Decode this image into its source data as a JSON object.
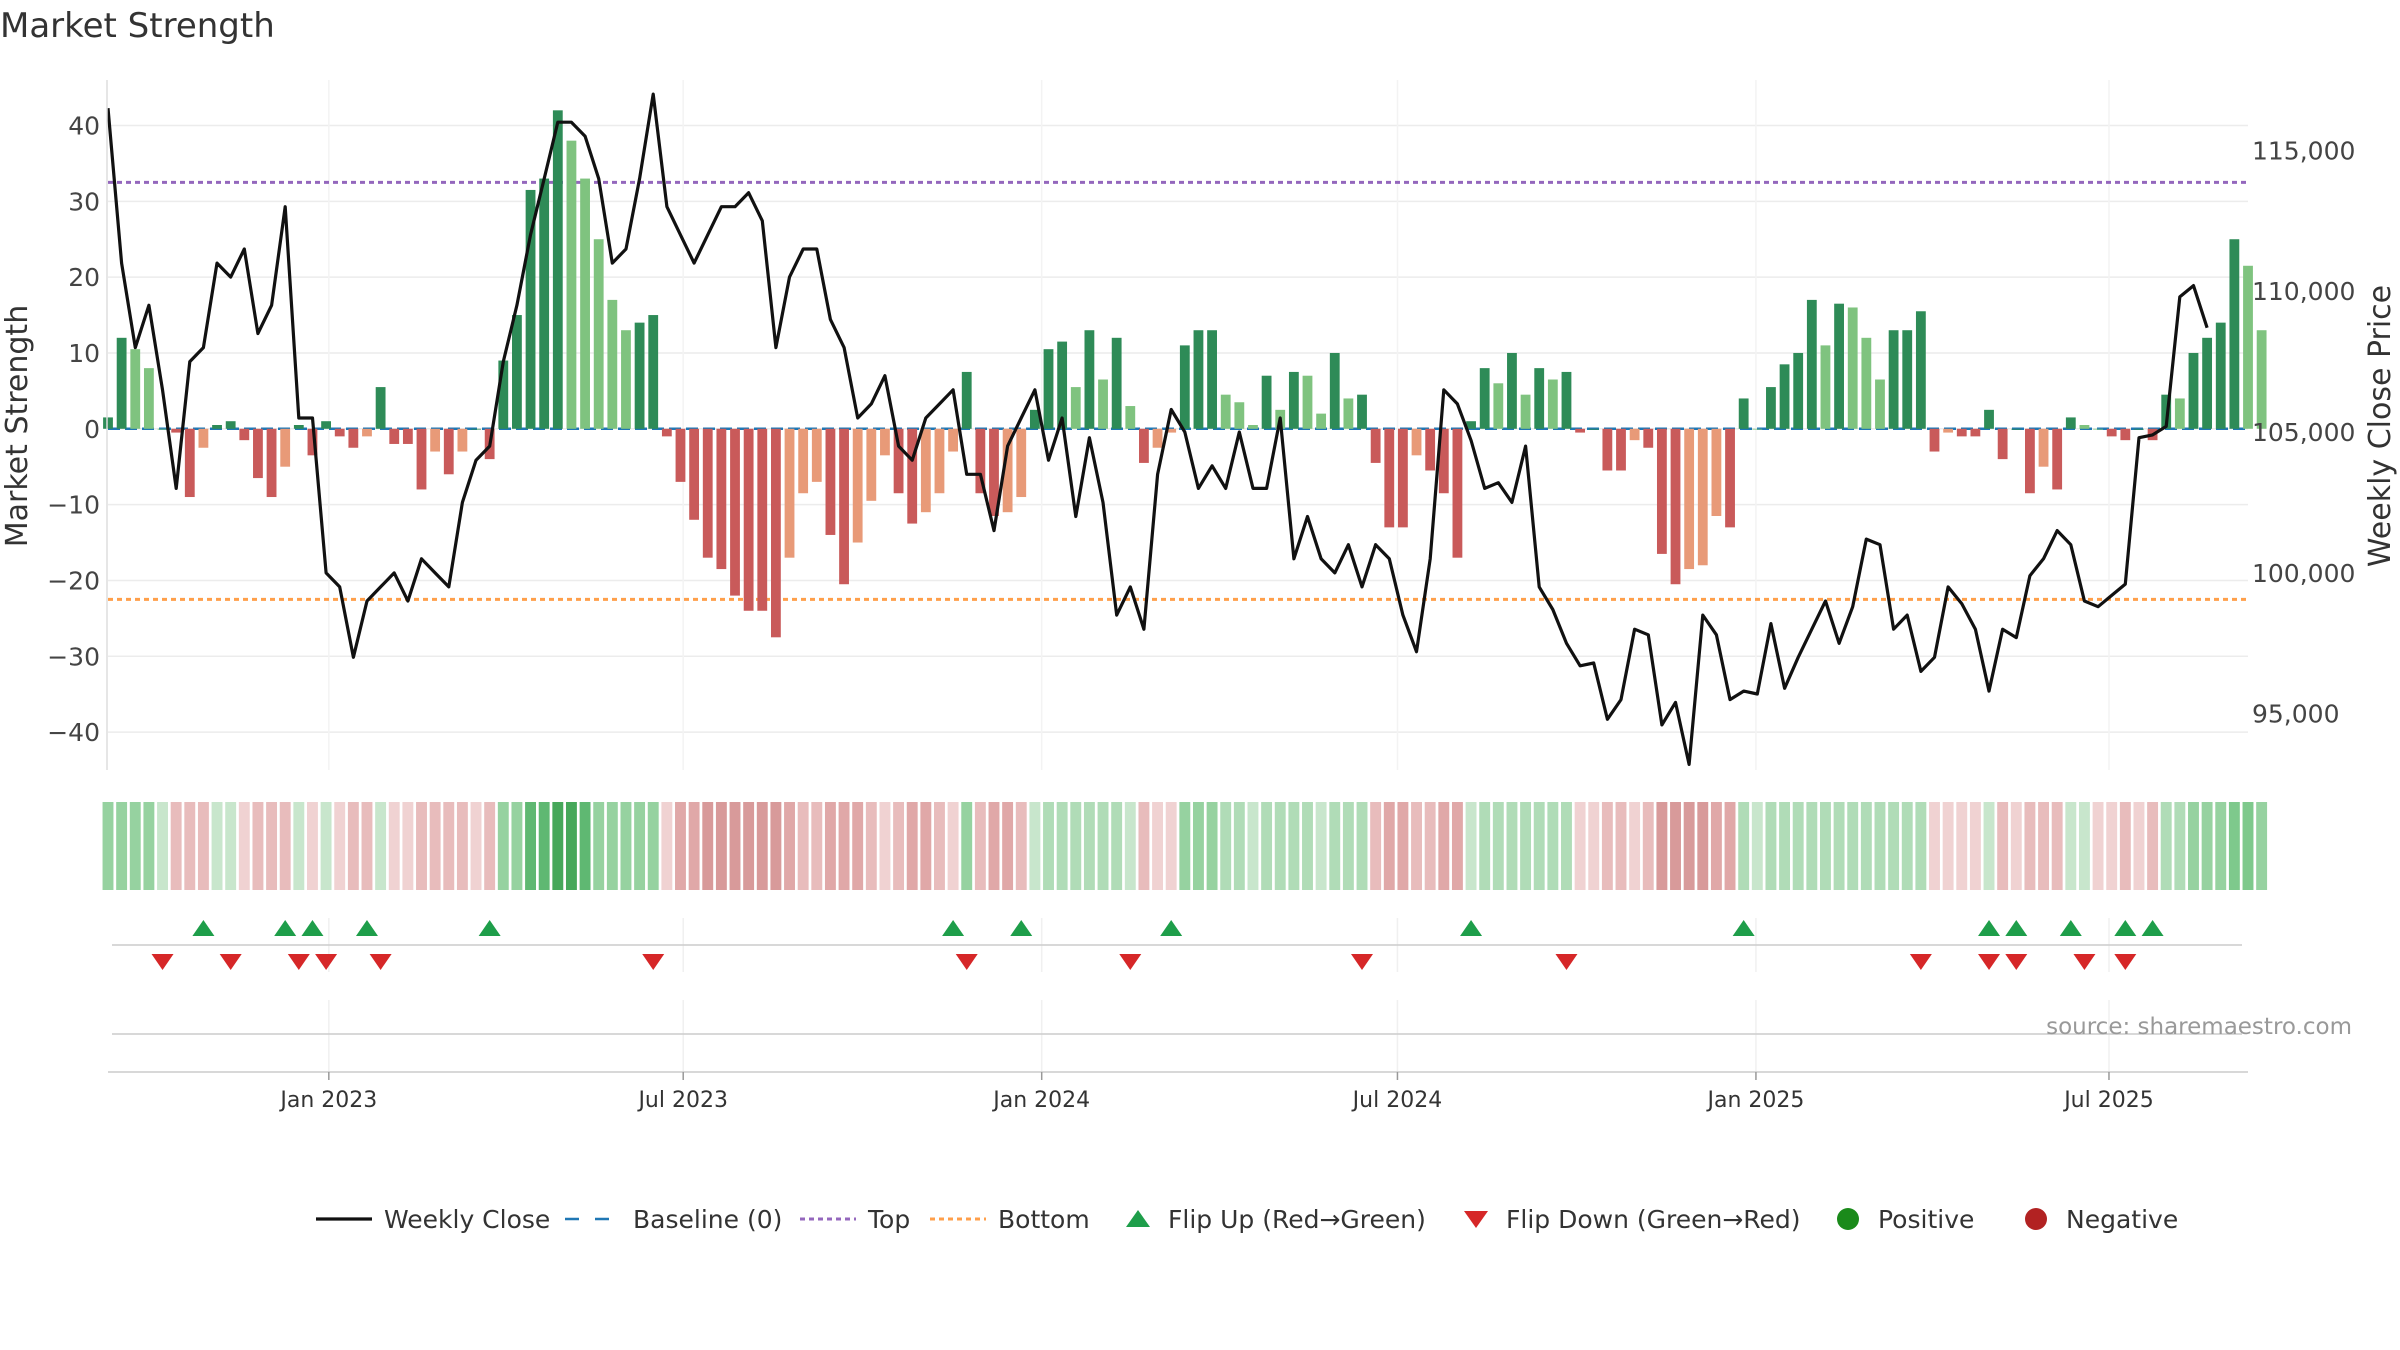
{
  "chart_data": {
    "type": "bar+line",
    "title": "Market Strength",
    "ylabel_left": "Market Strength",
    "ylabel_right": "Weekly Close Price",
    "ylim_left": [
      -45,
      46
    ],
    "yticks_left": [
      -40,
      -30,
      -20,
      -10,
      0,
      10,
      20,
      30,
      40
    ],
    "yticks_left_labels": [
      "−40",
      "−30",
      "−20",
      "−10",
      "0",
      "10",
      "20",
      "30",
      "40"
    ],
    "ylim_right": [
      93000,
      117500
    ],
    "yticks_right": [
      95000,
      100000,
      105000,
      110000,
      115000
    ],
    "yticks_right_labels": [
      "95,000",
      "100,000",
      "105,000",
      "110,000",
      "115,000"
    ],
    "top_threshold": 32.5,
    "bottom_threshold": -22.5,
    "baseline": 0,
    "x_range_weeks": [
      0,
      157
    ],
    "xticks": [
      {
        "week": 16.2,
        "label": "Jan 2023"
      },
      {
        "week": 42.2,
        "label": "Jul 2023"
      },
      {
        "week": 68.5,
        "label": "Jan 2024"
      },
      {
        "week": 94.6,
        "label": "Jul 2024"
      },
      {
        "week": 120.9,
        "label": "Jan 2025"
      },
      {
        "week": 146.8,
        "label": "Jul 2025"
      }
    ],
    "strength": [
      1.5,
      12,
      10.5,
      8,
      0,
      -0.5,
      -9,
      -2.5,
      0.5,
      1,
      -1.5,
      -6.5,
      -9,
      -5,
      0.5,
      -3.5,
      1,
      -1,
      -2.5,
      -1,
      5.5,
      -2,
      -2,
      -8,
      -3,
      -6,
      -3,
      0,
      -4,
      9,
      15,
      31.5,
      33,
      42,
      38,
      33,
      25,
      17,
      13,
      14,
      15,
      -1,
      -7,
      -12,
      -17,
      -18.5,
      -22,
      -24,
      -24,
      -27.5,
      -17,
      -8.5,
      -7,
      -14,
      -20.5,
      -15,
      -9.5,
      -3.5,
      -8.5,
      -12.5,
      -11,
      -8.5,
      -3,
      7.5,
      -8.5,
      -11.5,
      -11,
      -9,
      2.5,
      10.5,
      11.5,
      5.5,
      13,
      6.5,
      12,
      3,
      -4.5,
      -2.5,
      -0.5,
      11,
      13,
      13,
      4.5,
      3.5,
      0.5,
      7,
      2.5,
      7.5,
      7,
      2,
      10,
      4,
      4.5,
      -4.5,
      -13,
      -13,
      -3.5,
      -5.5,
      -8.5,
      -17,
      1,
      8,
      6,
      10,
      4.5,
      8,
      6.5,
      7.5,
      -0.5,
      0,
      -5.5,
      -5.5,
      -1.5,
      -2.5,
      -16.5,
      -20.5,
      -18.5,
      -18,
      -11.5,
      -13,
      4,
      0,
      5.5,
      8.5,
      10,
      17,
      11,
      16.5,
      16,
      12,
      6.5,
      13,
      13,
      15.5,
      -3,
      -0.5,
      -1,
      -1,
      2.5,
      -4,
      0,
      -8.5,
      -5,
      -8,
      1.5,
      0.5,
      0,
      -1,
      -1.5,
      0,
      -1.5,
      4.5,
      4,
      10,
      12,
      14,
      25,
      21.5,
      13
    ],
    "close": [
      116500,
      111000,
      108000,
      109500,
      106500,
      103000,
      107500,
      108000,
      111000,
      110500,
      111500,
      108500,
      109500,
      113000,
      105500,
      105500,
      100000,
      99500,
      97000,
      99000,
      99500,
      100000,
      99000,
      100500,
      100000,
      99500,
      102500,
      104000,
      104500,
      107500,
      109500,
      112000,
      114000,
      116000,
      116000,
      115500,
      114000,
      111000,
      111500,
      114000,
      117000,
      113000,
      112000,
      111000,
      112000,
      113000,
      113000,
      113500,
      112500,
      108000,
      110500,
      111500,
      111500,
      109000,
      108000,
      105500,
      106000,
      107000,
      104500,
      104000,
      105500,
      106000,
      106500,
      103500,
      103500,
      101500,
      104500,
      105500,
      106500,
      104000,
      105500,
      102000,
      104800,
      102500,
      98500,
      99500,
      98000,
      103500,
      105800,
      105000,
      103000,
      103800,
      103000,
      105000,
      103000,
      103000,
      105500,
      100500,
      102000,
      100500,
      100000,
      101000,
      99500,
      101000,
      100500,
      98500,
      97200,
      100500,
      106500,
      106000,
      104700,
      103000,
      103200,
      102500,
      104500,
      99500,
      98700,
      97500,
      96700,
      96800,
      94800,
      95500,
      98000,
      97800,
      94600,
      95400,
      93200,
      98500,
      97800,
      95500,
      95800,
      95700,
      98200,
      95900,
      97000,
      98000,
      99000,
      97500,
      98800,
      101200,
      101000,
      98000,
      98500,
      96500,
      97000,
      99500,
      98900,
      98000,
      95800,
      98000,
      97700,
      99900,
      100500,
      101500,
      101000,
      99000,
      98800,
      99200,
      99600,
      104800,
      104900,
      105200,
      109800,
      110200,
      108700
    ],
    "band_colors": [
      "#96d2a0",
      "#96d2a0",
      "#96d2a0",
      "#96d2a0",
      "#c8e6cc",
      "#e8bcbc",
      "#e8bcbc",
      "#e8bcbc",
      "#c8e6cc",
      "#c8e6cc",
      "#f0d2d2",
      "#e8bcbc",
      "#e8bcbc",
      "#e8bcbc",
      "#c8e6cc",
      "#f0d2d2",
      "#c8e6cc",
      "#f0d2d2",
      "#e8bcbc",
      "#e8bcbc",
      "#c8e6cc",
      "#f0d2d2",
      "#f0d2d2",
      "#e8bcbc",
      "#e8bcbc",
      "#e8bcbc",
      "#e8bcbc",
      "#f0d2d2",
      "#e8bcbc",
      "#96d2a0",
      "#96d2a0",
      "#5fb872",
      "#5fb872",
      "#46a85a",
      "#46a85a",
      "#5fb872",
      "#96d2a0",
      "#96d2a0",
      "#96d2a0",
      "#96d2a0",
      "#96d2a0",
      "#f0d2d2",
      "#e0a8a8",
      "#e0a8a8",
      "#d89a9a",
      "#d89a9a",
      "#d89a9a",
      "#d89a9a",
      "#d89a9a",
      "#d89a9a",
      "#e0a8a8",
      "#e8bcbc",
      "#e8bcbc",
      "#e0a8a8",
      "#e0a8a8",
      "#e0a8a8",
      "#e8bcbc",
      "#f0d2d2",
      "#e8bcbc",
      "#e0a8a8",
      "#e0a8a8",
      "#e8bcbc",
      "#f0d2d2",
      "#96d2a0",
      "#e8bcbc",
      "#e0a8a8",
      "#e0a8a8",
      "#e8bcbc",
      "#c8e6cc",
      "#b0dcb7",
      "#b0dcb7",
      "#b0dcb7",
      "#b0dcb7",
      "#b0dcb7",
      "#b0dcb7",
      "#c8e6cc",
      "#e8bcbc",
      "#f0d2d2",
      "#f0d2d2",
      "#96d2a0",
      "#96d2a0",
      "#96d2a0",
      "#b0dcb7",
      "#b0dcb7",
      "#c8e6cc",
      "#b0dcb7",
      "#b0dcb7",
      "#b0dcb7",
      "#b0dcb7",
      "#c8e6cc",
      "#b0dcb7",
      "#b0dcb7",
      "#b0dcb7",
      "#e8bcbc",
      "#e0a8a8",
      "#e0a8a8",
      "#e8bcbc",
      "#e8bcbc",
      "#e0a8a8",
      "#e0a8a8",
      "#c8e6cc",
      "#b0dcb7",
      "#b0dcb7",
      "#b0dcb7",
      "#b0dcb7",
      "#b0dcb7",
      "#b0dcb7",
      "#b0dcb7",
      "#f0d2d2",
      "#f0d2d2",
      "#e8bcbc",
      "#e8bcbc",
      "#f0d2d2",
      "#e8bcbc",
      "#d89a9a",
      "#d89a9a",
      "#d89a9a",
      "#d89a9a",
      "#e0a8a8",
      "#e0a8a8",
      "#b0dcb7",
      "#c8e6cc",
      "#b0dcb7",
      "#b0dcb7",
      "#b0dcb7",
      "#b0dcb7",
      "#b0dcb7",
      "#b0dcb7",
      "#b0dcb7",
      "#b0dcb7",
      "#b0dcb7",
      "#b0dcb7",
      "#b0dcb7",
      "#b0dcb7",
      "#f0d2d2",
      "#f0d2d2",
      "#f0d2d2",
      "#f0d2d2",
      "#c8e6cc",
      "#e8bcbc",
      "#f0d2d2",
      "#e8bcbc",
      "#e8bcbc",
      "#e8bcbc",
      "#c8e6cc",
      "#c8e6cc",
      "#f0d2d2",
      "#f0d2d2",
      "#e8bcbc",
      "#f0d2d2",
      "#e8bcbc",
      "#b0dcb7",
      "#b0dcb7",
      "#96d2a0",
      "#96d2a0",
      "#96d2a0",
      "#7ec98c",
      "#7ec98c",
      "#96d2a0"
    ],
    "flip_up_weeks": [
      7,
      13,
      15,
      19,
      28,
      62,
      67,
      78,
      100,
      120,
      138,
      140,
      144,
      148,
      150
    ],
    "flip_down_weeks": [
      4,
      9,
      14,
      16,
      20,
      40,
      63,
      75,
      92,
      107,
      133,
      138,
      140,
      145,
      148
    ],
    "colors": {
      "pos_strong": "#2e8b57",
      "pos_weak": "#7fc37f",
      "neg_strong": "#c95a5a",
      "neg_weak": "#e89a78",
      "line": "#111111",
      "baseline": "#1f77b4",
      "top": "#9467bd",
      "bottom": "#ff9f4a",
      "flip_up": "#1e9e4a",
      "flip_down": "#d62728",
      "positive": "#1a8a1a",
      "negative": "#b22222"
    },
    "legend": [
      {
        "label": "Weekly Close",
        "kind": "line"
      },
      {
        "label": "Baseline (0)",
        "kind": "dash-blue"
      },
      {
        "label": "Top",
        "kind": "dot-purple"
      },
      {
        "label": "Bottom",
        "kind": "dot-orange"
      },
      {
        "label": "Flip Up (Red→Green)",
        "kind": "tri-up"
      },
      {
        "label": "Flip Down (Green→Red)",
        "kind": "tri-down"
      },
      {
        "label": "Positive",
        "kind": "dot-green"
      },
      {
        "label": "Negative",
        "kind": "dot-red"
      }
    ],
    "source": "source: sharemaestro.com"
  }
}
